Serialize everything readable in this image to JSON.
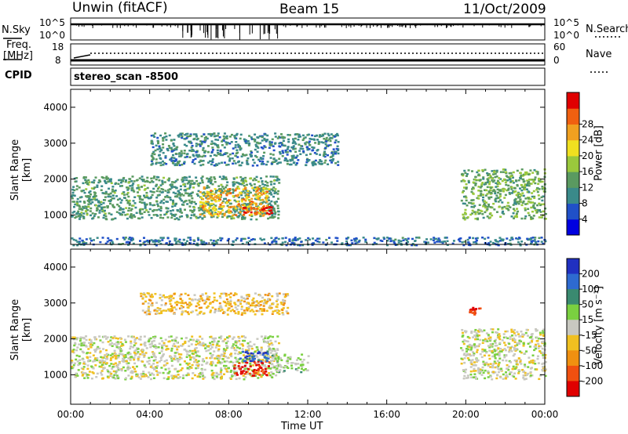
{
  "header": {
    "station": "Unwin (fitACF)",
    "beam": "Beam 15",
    "date": "11/Oct/2009"
  },
  "top_panels": {
    "nsky_label": "N.Sky",
    "nsky_ticks": [
      "10^5",
      "10^0"
    ],
    "nsearch_label": "N.Search",
    "nsearch_ticks": [
      "10^5",
      "10^0"
    ],
    "freq_label_line1": "Freq.",
    "freq_label_line2": "[MHz]",
    "freq_ticks": [
      "18",
      "8"
    ],
    "nave_label": "Nave",
    "nave_ticks": [
      "60",
      "0"
    ],
    "cpid_label": "CPID",
    "cpid_value": "stereo_scan -8500"
  },
  "panels": {
    "ylabel": "Slant Range [km]",
    "xlabel": "Time UT",
    "x_ticks": [
      "00:00",
      "04:00",
      "08:00",
      "12:00",
      "16:00",
      "20:00",
      "00:00"
    ],
    "y_ticks": [
      "1000",
      "2000",
      "3000",
      "4000"
    ]
  },
  "power_scale": {
    "label": "Power [dB]",
    "ticks": [
      "4",
      "8",
      "12",
      "16",
      "20",
      "24",
      "28"
    ],
    "colors": [
      "#0000e0",
      "#2050c8",
      "#3a8a8a",
      "#5a9a60",
      "#9ac83c",
      "#f0e020",
      "#f0a020",
      "#f06010",
      "#e00000"
    ]
  },
  "velocity_scale": {
    "label": "Velocity [m s⁻¹]",
    "ticks": [
      "200",
      "100",
      "50",
      "15",
      "-15",
      "-50",
      "-100",
      "-200"
    ],
    "colors": [
      "#2030c0",
      "#2e6ad0",
      "#3a8a70",
      "#7ad040",
      "#c8c8c0",
      "#f0c020",
      "#f09010",
      "#f05010",
      "#e00000"
    ]
  },
  "chart_data": [
    {
      "type": "heatmap",
      "title": "Power",
      "xlabel": "Time UT",
      "ylabel": "Slant Range [km]",
      "xlim": [
        "00:00",
        "24:00"
      ],
      "ylim": [
        180,
        4500
      ],
      "colorbar": {
        "label": "Power [dB]",
        "range": [
          0,
          30
        ]
      },
      "regions": [
        {
          "t_start": 0.0,
          "t_end": 10.5,
          "r_min": 900,
          "r_max": 2100,
          "value_db": 10
        },
        {
          "t_start": 6.5,
          "t_end": 10.0,
          "r_min": 1000,
          "r_max": 1800,
          "value_db": 22
        },
        {
          "t_start": 8.5,
          "t_end": 10.2,
          "r_min": 1050,
          "r_max": 1250,
          "value_db": 28
        },
        {
          "t_start": 4.0,
          "t_end": 13.5,
          "r_min": 2400,
          "r_max": 3300,
          "value_db": 8
        },
        {
          "t_start": 19.7,
          "t_end": 24.0,
          "r_min": 900,
          "r_max": 2300,
          "value_db": 12
        },
        {
          "t_start": 0.0,
          "t_end": 24.0,
          "r_min": 180,
          "r_max": 400,
          "value_db": 6
        }
      ]
    },
    {
      "type": "heatmap",
      "title": "Velocity",
      "xlabel": "Time UT",
      "ylabel": "Slant Range [km]",
      "xlim": [
        "00:00",
        "24:00"
      ],
      "ylim": [
        180,
        4500
      ],
      "colorbar": {
        "label": "Velocity [m s⁻¹]",
        "range": [
          -250,
          250
        ]
      },
      "regions": [
        {
          "t_start": 0.0,
          "t_end": 10.5,
          "r_min": 900,
          "r_max": 2100,
          "value_ms": 0
        },
        {
          "t_start": 3.5,
          "t_end": 11.0,
          "r_min": 2700,
          "r_max": 3300,
          "value_ms": -60
        },
        {
          "t_start": 8.2,
          "t_end": 10.0,
          "r_min": 1000,
          "r_max": 1400,
          "value_ms": -230
        },
        {
          "t_start": 8.5,
          "t_end": 10.0,
          "r_min": 1400,
          "r_max": 1700,
          "value_ms": 200
        },
        {
          "t_start": 10.0,
          "t_end": 12.0,
          "r_min": 1100,
          "r_max": 1600,
          "value_ms": 40
        },
        {
          "t_start": 19.7,
          "t_end": 24.0,
          "r_min": 900,
          "r_max": 2300,
          "value_ms": 0
        },
        {
          "t_start": 20.1,
          "t_end": 20.7,
          "r_min": 2700,
          "r_max": 2900,
          "value_ms": -220
        }
      ]
    }
  ]
}
